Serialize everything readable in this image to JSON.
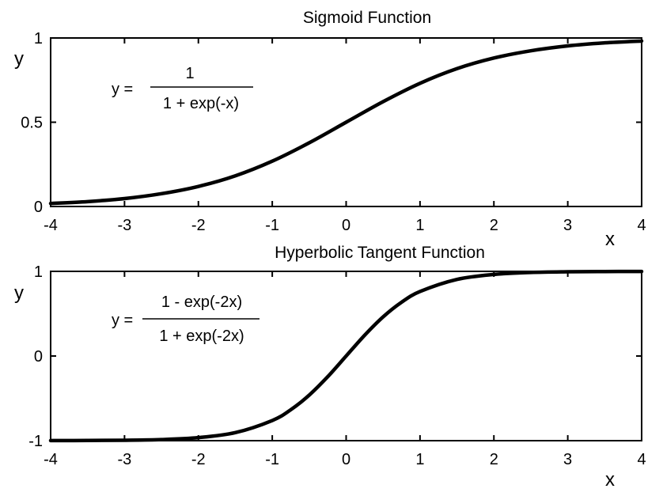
{
  "chart_data": [
    {
      "type": "line",
      "title": "Sigmoid Function",
      "xlabel": "x",
      "ylabel": "y",
      "xlim": [
        -4,
        4
      ],
      "ylim": [
        0,
        1
      ],
      "x_ticks": [
        -4,
        -3,
        -2,
        -1,
        0,
        1,
        2,
        3,
        4
      ],
      "x_tick_labels": [
        "-4",
        "-3",
        "-2",
        "-1",
        "0",
        "1",
        "2",
        "3",
        "4"
      ],
      "y_ticks": [
        0,
        0.5,
        1
      ],
      "y_tick_labels": [
        "0",
        "0.5",
        "1"
      ],
      "grid": false,
      "formula": {
        "lhs": "y =",
        "numerator": "1",
        "denominator": "1 + exp(-x)"
      },
      "series": [
        {
          "x": [
            -4,
            -3.5,
            -3,
            -2.5,
            -2,
            -1.5,
            -1,
            -0.5,
            0,
            0.5,
            1,
            1.5,
            2,
            2.5,
            3,
            3.5,
            4
          ],
          "values": [
            0.018,
            0.029,
            0.047,
            0.076,
            0.119,
            0.182,
            0.269,
            0.378,
            0.5,
            0.622,
            0.731,
            0.818,
            0.881,
            0.924,
            0.953,
            0.971,
            0.982
          ]
        }
      ]
    },
    {
      "type": "line",
      "title": "Hyperbolic Tangent Function",
      "xlabel": "x",
      "ylabel": "y",
      "xlim": [
        -4,
        4
      ],
      "ylim": [
        -1,
        1
      ],
      "x_ticks": [
        -4,
        -3,
        -2,
        -1,
        0,
        1,
        2,
        3,
        4
      ],
      "x_tick_labels": [
        "-4",
        "-3",
        "-2",
        "-1",
        "0",
        "1",
        "2",
        "3",
        "4"
      ],
      "y_ticks": [
        -1,
        0,
        1
      ],
      "y_tick_labels": [
        "-1",
        "0",
        "1"
      ],
      "grid": false,
      "formula": {
        "lhs": "y =",
        "numerator": "1 - exp(-2x)",
        "denominator": "1 + exp(-2x)"
      },
      "series": [
        {
          "x": [
            -4,
            -3.5,
            -3,
            -2.5,
            -2,
            -1.5,
            -1,
            -0.75,
            -0.5,
            -0.25,
            0,
            0.25,
            0.5,
            0.75,
            1,
            1.5,
            2,
            2.5,
            3,
            3.5,
            4
          ],
          "values": [
            -0.999,
            -0.998,
            -0.995,
            -0.987,
            -0.964,
            -0.905,
            -0.762,
            -0.635,
            -0.462,
            -0.245,
            0,
            0.245,
            0.462,
            0.635,
            0.762,
            0.905,
            0.964,
            0.987,
            0.995,
            0.998,
            0.999
          ]
        }
      ]
    }
  ]
}
